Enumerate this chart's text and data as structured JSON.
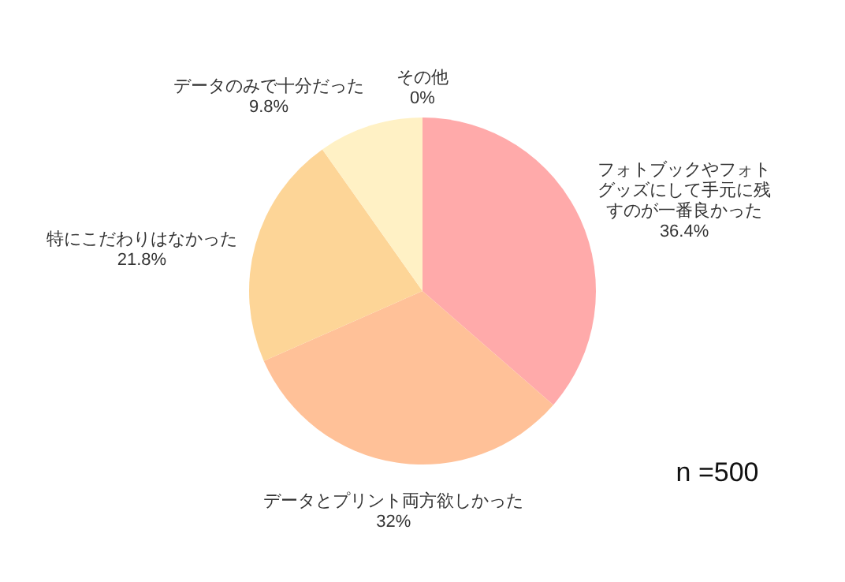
{
  "chart_data": {
    "type": "pie",
    "categories": [
      "フォトブックやフォトグッズにして手元に残すのが一番良かった",
      "データとプリント両方欲しかった",
      "特にこだわりはなかった",
      "データのみで十分だった",
      "その他"
    ],
    "values": [
      36.4,
      32,
      21.8,
      9.8,
      0
    ],
    "value_labels": [
      "36.4%",
      "32%",
      "21.8%",
      "9.8%",
      "0%"
    ],
    "colors": [
      "#ffaaaa",
      "#ffc198",
      "#fdd597",
      "#fff1c5",
      "#dddddd"
    ],
    "annotations": [
      "n =500"
    ]
  }
}
